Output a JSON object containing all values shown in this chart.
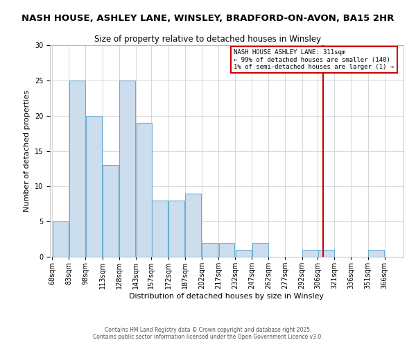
{
  "title": "NASH HOUSE, ASHLEY LANE, WINSLEY, BRADFORD-ON-AVON, BA15 2HR",
  "subtitle": "Size of property relative to detached houses in Winsley",
  "xlabel": "Distribution of detached houses by size in Winsley",
  "ylabel": "Number of detached properties",
  "bin_labels": [
    "68sqm",
    "83sqm",
    "98sqm",
    "113sqm",
    "128sqm",
    "143sqm",
    "157sqm",
    "172sqm",
    "187sqm",
    "202sqm",
    "217sqm",
    "232sqm",
    "247sqm",
    "262sqm",
    "277sqm",
    "292sqm",
    "306sqm",
    "321sqm",
    "336sqm",
    "351sqm",
    "366sqm"
  ],
  "bin_edges": [
    68,
    83,
    98,
    113,
    128,
    143,
    157,
    172,
    187,
    202,
    217,
    232,
    247,
    262,
    277,
    292,
    306,
    321,
    336,
    351,
    366
  ],
  "counts": [
    5,
    25,
    20,
    13,
    25,
    19,
    8,
    8,
    9,
    2,
    2,
    1,
    2,
    0,
    0,
    1,
    1,
    0,
    0,
    1,
    0
  ],
  "bar_facecolor": "#ccdded",
  "bar_edgecolor": "#6aaed6",
  "grid_color": "#d0d0d0",
  "vline_x": 311,
  "vline_color": "#cc0000",
  "box_text_line1": "NASH HOUSE ASHLEY LANE: 311sqm",
  "box_text_line2": "← 99% of detached houses are smaller (140)",
  "box_text_line3": "1% of semi-detached houses are larger (1) →",
  "box_facecolor": "#ffffff",
  "box_edgecolor": "#cc0000",
  "ylim": [
    0,
    30
  ],
  "yticks": [
    0,
    5,
    10,
    15,
    20,
    25,
    30
  ],
  "title_fontsize": 9.5,
  "subtitle_fontsize": 8.5,
  "axis_label_fontsize": 8,
  "tick_fontsize": 7,
  "annotation_fontsize": 6.5,
  "footer_text": "Contains HM Land Registry data © Crown copyright and database right 2025.\nContains public sector information licensed under the Open Government Licence v3.0.",
  "background_color": "#ffffff"
}
